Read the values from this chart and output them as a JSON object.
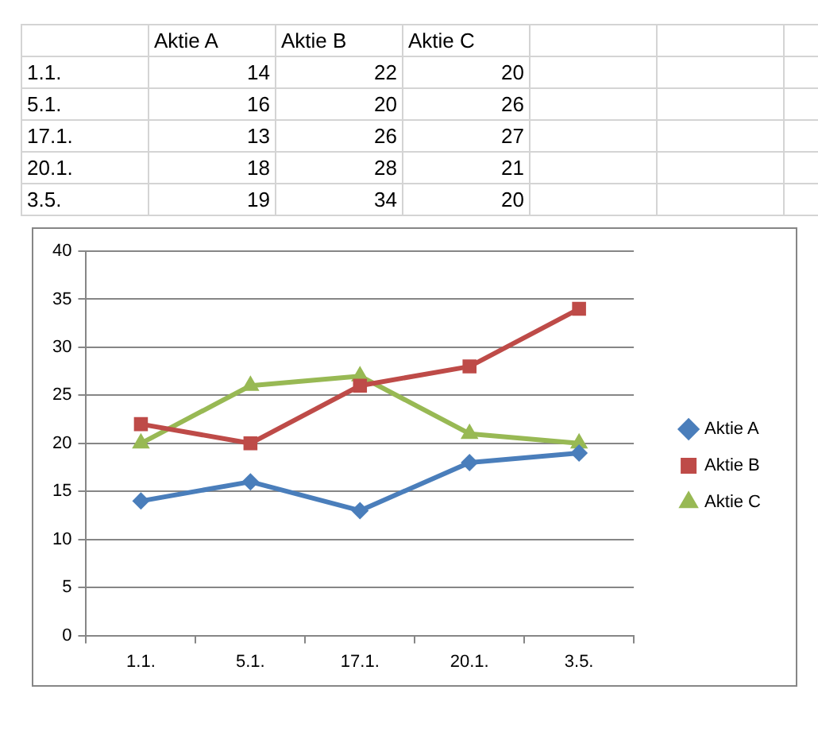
{
  "chart_data": [
    {
      "type": "other",
      "categories": [
        "1.1.",
        "5.1.",
        "17.1.",
        "20.1.",
        "3.5."
      ],
      "series": [
        {
          "name": "Aktie A",
          "values": [
            14,
            16,
            13,
            18,
            19
          ]
        },
        {
          "name": "Aktie B",
          "values": [
            22,
            20,
            26,
            28,
            34
          ]
        },
        {
          "name": "Aktie C",
          "values": [
            20,
            26,
            27,
            21,
            20
          ]
        }
      ],
      "data_labels": true
    },
    {
      "type": "line",
      "categories": [
        "1.1.",
        "5.1.",
        "17.1.",
        "20.1.",
        "3.5."
      ],
      "series": [
        {
          "name": "Aktie A",
          "color": "#4a7ebb",
          "marker": "diamond",
          "values": [
            14,
            16,
            13,
            18,
            19
          ]
        },
        {
          "name": "Aktie B",
          "color": "#be4b48",
          "marker": "square",
          "values": [
            22,
            20,
            26,
            28,
            34
          ]
        },
        {
          "name": "Aktie C",
          "color": "#98b954",
          "marker": "triangle",
          "values": [
            20,
            26,
            27,
            21,
            20
          ]
        }
      ],
      "ylim": [
        0,
        40
      ],
      "yticks": [
        0,
        5,
        10,
        15,
        20,
        25,
        30,
        35,
        40
      ],
      "grid": "y",
      "legend": "right"
    }
  ]
}
